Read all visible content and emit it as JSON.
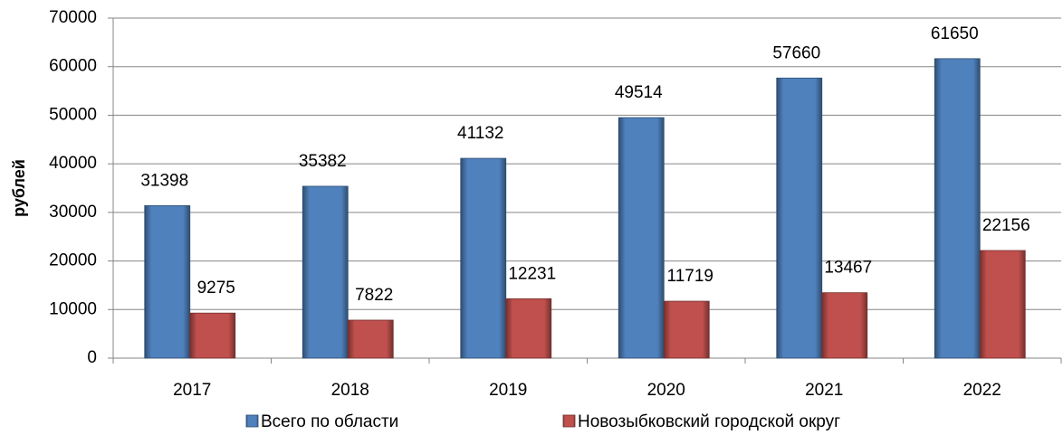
{
  "chart_data": {
    "type": "bar",
    "y_label": "рублей",
    "categories": [
      "2017",
      "2018",
      "2019",
      "2020",
      "2021",
      "2022"
    ],
    "series": [
      {
        "name": "Всего по области",
        "color": "#4f81bd",
        "values": [
          31398,
          35382,
          41132,
          49514,
          57660,
          61650
        ]
      },
      {
        "name": "Новозыбковский городской округ",
        "color": "#c0504d",
        "values": [
          9275,
          7822,
          12231,
          11719,
          13467,
          22156
        ]
      }
    ],
    "ylim": [
      0,
      70000
    ],
    "yticks": [
      0,
      10000,
      20000,
      30000,
      40000,
      50000,
      60000,
      70000
    ],
    "grid": true,
    "legend": "bottom"
  }
}
